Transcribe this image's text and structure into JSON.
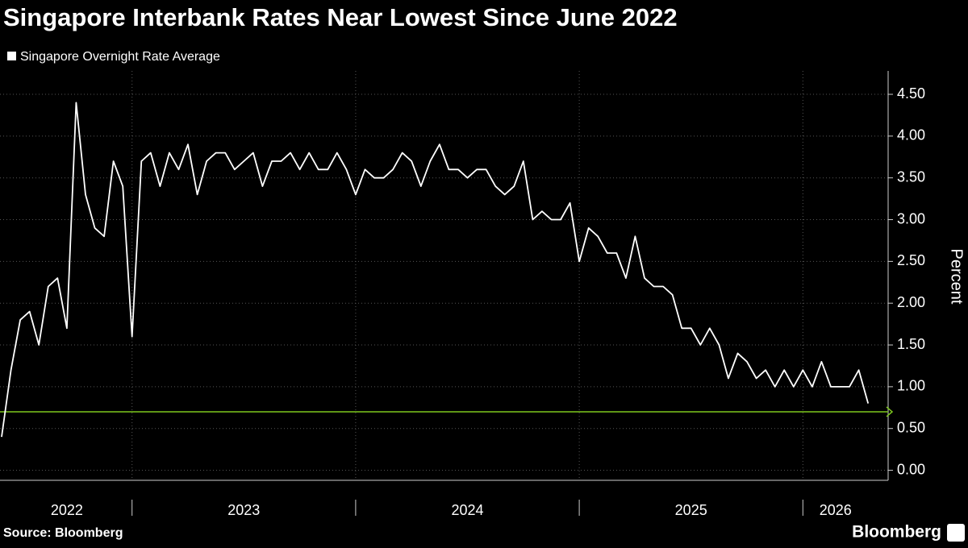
{
  "chart_data": {
    "type": "line",
    "title": "Singapore Interbank Rates Near Lowest Since June 2022",
    "y_label": "Percent",
    "categories": [
      "2022",
      null,
      null,
      null,
      null,
      null,
      null,
      null,
      null,
      null,
      null,
      null,
      null,
      null,
      "2023",
      null,
      null,
      null,
      null,
      null,
      null,
      null,
      null,
      null,
      null,
      null,
      null,
      null,
      null,
      null,
      null,
      null,
      null,
      null,
      null,
      null,
      null,
      null,
      "2024",
      null,
      null,
      null,
      null,
      null,
      null,
      null,
      null,
      null,
      null,
      null,
      null,
      null,
      null,
      null,
      null,
      null,
      null,
      null,
      null,
      null,
      null,
      null,
      "2025",
      null,
      null,
      null,
      null,
      null,
      null,
      null,
      null,
      null,
      null,
      null,
      null,
      null,
      null,
      null,
      null,
      null,
      null,
      null,
      null,
      null,
      null,
      null,
      "2026",
      null,
      null,
      null,
      null,
      null,
      null,
      null
    ],
    "series": [
      {
        "name": "Singapore Overnight Rate Average",
        "color": "#ffffff",
        "values": [
          0.4,
          1.2,
          1.8,
          1.9,
          1.5,
          2.2,
          2.3,
          1.7,
          4.4,
          3.3,
          2.9,
          2.8,
          3.7,
          3.4,
          1.6,
          3.7,
          3.8,
          3.4,
          3.8,
          3.6,
          3.9,
          3.3,
          3.7,
          3.8,
          3.8,
          3.6,
          3.7,
          3.8,
          3.4,
          3.7,
          3.7,
          3.8,
          3.6,
          3.8,
          3.6,
          3.6,
          3.8,
          3.6,
          3.3,
          3.6,
          3.5,
          3.5,
          3.6,
          3.8,
          3.7,
          3.4,
          3.7,
          3.9,
          3.6,
          3.6,
          3.5,
          3.6,
          3.6,
          3.4,
          3.3,
          3.4,
          3.7,
          3.0,
          3.1,
          3.0,
          3.0,
          3.2,
          2.5,
          2.9,
          2.8,
          2.6,
          2.6,
          2.3,
          2.8,
          2.3,
          2.2,
          2.2,
          2.1,
          1.7,
          1.7,
          1.5,
          1.7,
          1.5,
          1.1,
          1.4,
          1.3,
          1.1,
          1.2,
          1.0,
          1.2,
          1.0,
          1.2,
          1.0,
          1.3,
          1.0,
          1.0,
          1.0,
          1.2,
          0.8
        ]
      }
    ],
    "ylim": [
      -0.12,
      4.78
    ],
    "yticks": [
      {
        "value": 0,
        "label": "0.00"
      },
      {
        "value": 0.5,
        "label": "0.50"
      },
      {
        "value": 1,
        "label": "1.00"
      },
      {
        "value": 1.5,
        "label": "1.50"
      },
      {
        "value": 2,
        "label": "2.00"
      },
      {
        "value": 2.5,
        "label": "2.50"
      },
      {
        "value": 3,
        "label": "3.00"
      },
      {
        "value": 3.5,
        "label": "3.50"
      },
      {
        "value": 4,
        "label": "4.00"
      },
      {
        "value": 4.5,
        "label": "4.50"
      }
    ],
    "grid": true,
    "reference_line": {
      "value": 0.7,
      "color": "#7dc81e"
    }
  },
  "footer": {
    "source": "Source: Bloomberg",
    "brand": "Bloomberg"
  }
}
